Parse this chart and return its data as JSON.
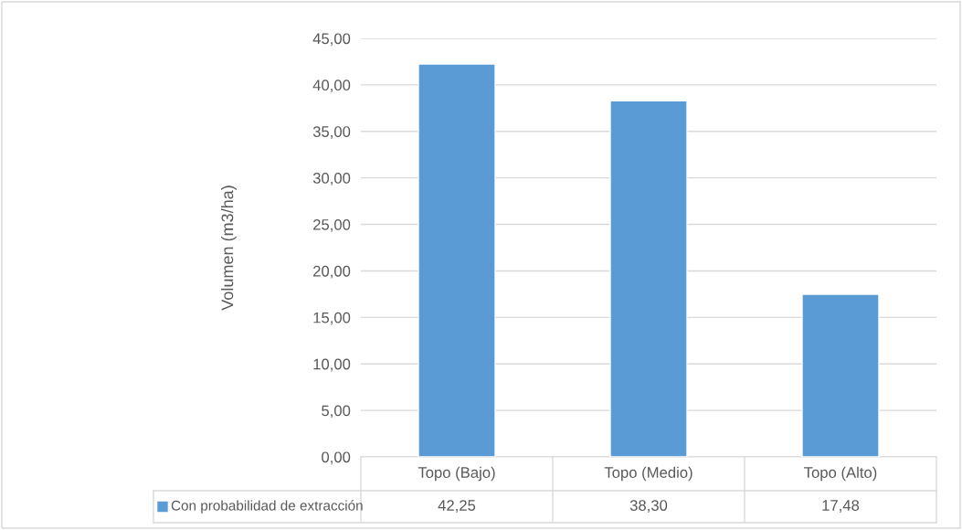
{
  "chart_data": {
    "type": "bar",
    "ylabel": "Volumen (m3/ha)",
    "categories": [
      "Topo (Bajo)",
      "Topo (Medio)",
      "Topo (Alto)"
    ],
    "series": [
      {
        "name": "Con probabilidad de extracción",
        "color": "#5b9bd5",
        "values": [
          42.25,
          38.3,
          17.48
        ],
        "value_labels": [
          "42,25",
          "38,30",
          "17,48"
        ]
      }
    ],
    "ylim": [
      0,
      45
    ],
    "yticks": [
      {
        "value": 0,
        "label": "0,00"
      },
      {
        "value": 5,
        "label": "5,00"
      },
      {
        "value": 10,
        "label": "10,00"
      },
      {
        "value": 15,
        "label": "15,00"
      },
      {
        "value": 20,
        "label": "20,00"
      },
      {
        "value": 25,
        "label": "25,00"
      },
      {
        "value": 30,
        "label": "30,00"
      },
      {
        "value": 35,
        "label": "35,00"
      },
      {
        "value": 40,
        "label": "40,00"
      },
      {
        "value": 45,
        "label": "45,00"
      }
    ],
    "grid": "y",
    "legend": "bottom"
  }
}
